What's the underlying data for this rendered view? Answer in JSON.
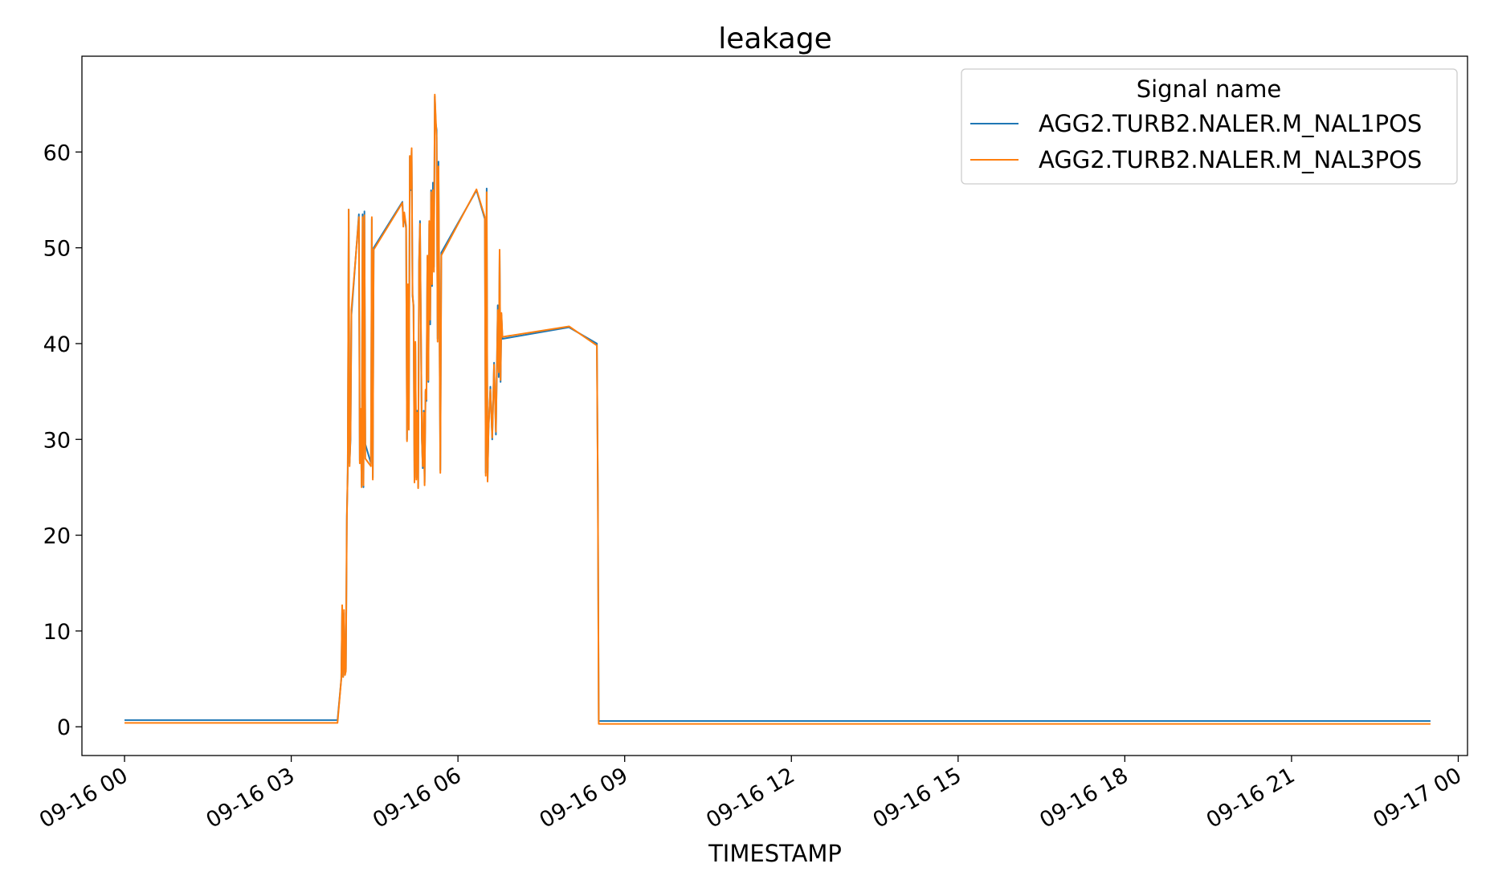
{
  "chart_data": {
    "type": "line",
    "title": "leakage",
    "xlabel": "TIMESTAMP",
    "ylabel": "",
    "xlim": [
      "2023-09-15T23:14",
      "2023-09-17T00:10"
    ],
    "ylim": [
      -3,
      70
    ],
    "x_ticks": [
      "09-16 00",
      "09-16 03",
      "09-16 06",
      "09-16 09",
      "09-16 12",
      "09-16 15",
      "09-16 18",
      "09-16 21",
      "09-17 00"
    ],
    "y_ticks": [
      0,
      10,
      20,
      30,
      40,
      50,
      60
    ],
    "grid": false,
    "legend": {
      "title": "Signal name",
      "location": "top-right"
    },
    "series": [
      {
        "name": "AGG2.TURB2.NALER.M_NAL1POS",
        "color": "#1f77b4",
        "points": [
          [
            "2023-09-16T00:00",
            0.7
          ],
          [
            "2023-09-16T03:50",
            0.7
          ],
          [
            "2023-09-16T03:54",
            5.0
          ],
          [
            "2023-09-16T03:55",
            12.5
          ],
          [
            "2023-09-16T03:56",
            5.2
          ],
          [
            "2023-09-16T03:57",
            11.9
          ],
          [
            "2023-09-16T03:58",
            5.6
          ],
          [
            "2023-09-16T03:59",
            6.0
          ],
          [
            "2023-09-16T04:00",
            22.0
          ],
          [
            "2023-09-16T04:01",
            26.5
          ],
          [
            "2023-09-16T04:02",
            54.0
          ],
          [
            "2023-09-16T04:03",
            27.5
          ],
          [
            "2023-09-16T04:04",
            30.0
          ],
          [
            "2023-09-16T04:05",
            43.0
          ],
          [
            "2023-09-16T04:13",
            53.5
          ],
          [
            "2023-09-16T04:14",
            27.8
          ],
          [
            "2023-09-16T04:15",
            33.0
          ],
          [
            "2023-09-16T04:16",
            25.2
          ],
          [
            "2023-09-16T04:17",
            53.5
          ],
          [
            "2023-09-16T04:18",
            25.0
          ],
          [
            "2023-09-16T04:19",
            53.8
          ],
          [
            "2023-09-16T04:20",
            29.5
          ],
          [
            "2023-09-16T04:26",
            27.5
          ],
          [
            "2023-09-16T04:27",
            53.0
          ],
          [
            "2023-09-16T04:28",
            26.0
          ],
          [
            "2023-09-16T04:29",
            50.0
          ],
          [
            "2023-09-16T05:00",
            54.8
          ],
          [
            "2023-09-16T05:01",
            52.5
          ],
          [
            "2023-09-16T05:02",
            53.5
          ],
          [
            "2023-09-16T05:04",
            52.0
          ],
          [
            "2023-09-16T05:05",
            30.0
          ],
          [
            "2023-09-16T05:06",
            46.0
          ],
          [
            "2023-09-16T05:07",
            31.5
          ],
          [
            "2023-09-16T05:08",
            59.5
          ],
          [
            "2023-09-16T05:09",
            56.0
          ],
          [
            "2023-09-16T05:10",
            60.3
          ],
          [
            "2023-09-16T05:11",
            45.0
          ],
          [
            "2023-09-16T05:12",
            44.0
          ],
          [
            "2023-09-16T05:13",
            25.8
          ],
          [
            "2023-09-16T05:14",
            40.0
          ],
          [
            "2023-09-16T05:15",
            26.0
          ],
          [
            "2023-09-16T05:16",
            33.0
          ],
          [
            "2023-09-16T05:17",
            25.0
          ],
          [
            "2023-09-16T05:18",
            48.5
          ],
          [
            "2023-09-16T05:19",
            52.8
          ],
          [
            "2023-09-16T05:21",
            30.0
          ],
          [
            "2023-09-16T05:22",
            27.0
          ],
          [
            "2023-09-16T05:23",
            33.0
          ],
          [
            "2023-09-16T05:24",
            25.5
          ],
          [
            "2023-09-16T05:25",
            35.0
          ],
          [
            "2023-09-16T05:26",
            34.0
          ],
          [
            "2023-09-16T05:27",
            49.0
          ],
          [
            "2023-09-16T05:28",
            36.0
          ],
          [
            "2023-09-16T05:29",
            52.5
          ],
          [
            "2023-09-16T05:30",
            42.0
          ],
          [
            "2023-09-16T05:31",
            56.0
          ],
          [
            "2023-09-16T05:32",
            46.0
          ],
          [
            "2023-09-16T05:33",
            56.8
          ],
          [
            "2023-09-16T05:34",
            48.0
          ],
          [
            "2023-09-16T05:35",
            65.8
          ],
          [
            "2023-09-16T05:36",
            63.0
          ],
          [
            "2023-09-16T05:37",
            62.3
          ],
          [
            "2023-09-16T05:38",
            40.5
          ],
          [
            "2023-09-16T05:39",
            59.0
          ],
          [
            "2023-09-16T05:40",
            42.0
          ],
          [
            "2023-09-16T05:41",
            26.8
          ],
          [
            "2023-09-16T05:42",
            49.5
          ],
          [
            "2023-09-16T06:20",
            56.0
          ],
          [
            "2023-09-16T06:29",
            53.0
          ],
          [
            "2023-09-16T06:30",
            26.5
          ],
          [
            "2023-09-16T06:31",
            56.2
          ],
          [
            "2023-09-16T06:32",
            25.8
          ],
          [
            "2023-09-16T06:33",
            31.0
          ],
          [
            "2023-09-16T06:35",
            35.5
          ],
          [
            "2023-09-16T06:37",
            30.0
          ],
          [
            "2023-09-16T06:39",
            38.0
          ],
          [
            "2023-09-16T06:41",
            30.5
          ],
          [
            "2023-09-16T06:43",
            44.0
          ],
          [
            "2023-09-16T06:44",
            36.5
          ],
          [
            "2023-09-16T06:45",
            49.5
          ],
          [
            "2023-09-16T06:46",
            36.0
          ],
          [
            "2023-09-16T06:47",
            43.0
          ],
          [
            "2023-09-16T06:48",
            40.5
          ],
          [
            "2023-09-16T08:00",
            41.7
          ],
          [
            "2023-09-16T08:30",
            40.0
          ],
          [
            "2023-09-16T08:31",
            25.0
          ],
          [
            "2023-09-16T08:32",
            0.6
          ],
          [
            "2023-09-16T23:30",
            0.6
          ]
        ]
      },
      {
        "name": "AGG2.TURB2.NALER.M_NAL3POS",
        "color": "#ff7f0e",
        "points": [
          [
            "2023-09-16T00:00",
            0.4
          ],
          [
            "2023-09-16T03:50",
            0.4
          ],
          [
            "2023-09-16T03:54",
            5.0
          ],
          [
            "2023-09-16T03:55",
            12.7
          ],
          [
            "2023-09-16T03:56",
            5.2
          ],
          [
            "2023-09-16T03:57",
            12.2
          ],
          [
            "2023-09-16T03:58",
            5.4
          ],
          [
            "2023-09-16T03:59",
            5.8
          ],
          [
            "2023-09-16T04:00",
            21.5
          ],
          [
            "2023-09-16T04:01",
            26.8
          ],
          [
            "2023-09-16T04:02",
            54.0
          ],
          [
            "2023-09-16T04:03",
            27.2
          ],
          [
            "2023-09-16T04:04",
            30.5
          ],
          [
            "2023-09-16T04:05",
            43.5
          ],
          [
            "2023-09-16T04:13",
            53.2
          ],
          [
            "2023-09-16T04:14",
            27.5
          ],
          [
            "2023-09-16T04:15",
            33.2
          ],
          [
            "2023-09-16T04:16",
            25.0
          ],
          [
            "2023-09-16T04:17",
            53.2
          ],
          [
            "2023-09-16T04:18",
            25.2
          ],
          [
            "2023-09-16T04:19",
            53.4
          ],
          [
            "2023-09-16T04:20",
            28.0
          ],
          [
            "2023-09-16T04:26",
            27.2
          ],
          [
            "2023-09-16T04:27",
            53.2
          ],
          [
            "2023-09-16T04:28",
            25.8
          ],
          [
            "2023-09-16T04:29",
            49.8
          ],
          [
            "2023-09-16T05:00",
            54.7
          ],
          [
            "2023-09-16T05:01",
            52.2
          ],
          [
            "2023-09-16T05:02",
            53.7
          ],
          [
            "2023-09-16T05:04",
            52.3
          ],
          [
            "2023-09-16T05:05",
            29.8
          ],
          [
            "2023-09-16T05:06",
            46.2
          ],
          [
            "2023-09-16T05:07",
            31.0
          ],
          [
            "2023-09-16T05:08",
            59.6
          ],
          [
            "2023-09-16T05:09",
            56.2
          ],
          [
            "2023-09-16T05:10",
            60.4
          ],
          [
            "2023-09-16T05:11",
            45.2
          ],
          [
            "2023-09-16T05:12",
            43.8
          ],
          [
            "2023-09-16T05:13",
            25.5
          ],
          [
            "2023-09-16T05:14",
            40.2
          ],
          [
            "2023-09-16T05:15",
            25.8
          ],
          [
            "2023-09-16T05:16",
            32.8
          ],
          [
            "2023-09-16T05:17",
            24.9
          ],
          [
            "2023-09-16T05:18",
            48.2
          ],
          [
            "2023-09-16T05:19",
            52.5
          ],
          [
            "2023-09-16T05:21",
            30.2
          ],
          [
            "2023-09-16T05:22",
            27.2
          ],
          [
            "2023-09-16T05:23",
            32.8
          ],
          [
            "2023-09-16T05:24",
            25.2
          ],
          [
            "2023-09-16T05:25",
            35.2
          ],
          [
            "2023-09-16T05:26",
            34.2
          ],
          [
            "2023-09-16T05:27",
            49.2
          ],
          [
            "2023-09-16T05:28",
            36.2
          ],
          [
            "2023-09-16T05:29",
            52.8
          ],
          [
            "2023-09-16T05:30",
            42.5
          ],
          [
            "2023-09-16T05:31",
            55.8
          ],
          [
            "2023-09-16T05:32",
            46.2
          ],
          [
            "2023-09-16T05:33",
            56.0
          ],
          [
            "2023-09-16T05:34",
            47.5
          ],
          [
            "2023-09-16T05:35",
            66.0
          ],
          [
            "2023-09-16T05:36",
            63.5
          ],
          [
            "2023-09-16T05:37",
            61.5
          ],
          [
            "2023-09-16T05:38",
            40.2
          ],
          [
            "2023-09-16T05:39",
            58.5
          ],
          [
            "2023-09-16T05:40",
            41.5
          ],
          [
            "2023-09-16T05:41",
            26.5
          ],
          [
            "2023-09-16T05:42",
            49.2
          ],
          [
            "2023-09-16T06:20",
            56.1
          ],
          [
            "2023-09-16T06:29",
            53.2
          ],
          [
            "2023-09-16T06:30",
            26.2
          ],
          [
            "2023-09-16T06:31",
            55.8
          ],
          [
            "2023-09-16T06:32",
            25.6
          ],
          [
            "2023-09-16T06:33",
            31.2
          ],
          [
            "2023-09-16T06:35",
            35.2
          ],
          [
            "2023-09-16T06:37",
            30.2
          ],
          [
            "2023-09-16T06:39",
            37.8
          ],
          [
            "2023-09-16T06:41",
            30.8
          ],
          [
            "2023-09-16T06:43",
            43.5
          ],
          [
            "2023-09-16T06:44",
            37.0
          ],
          [
            "2023-09-16T06:45",
            49.8
          ],
          [
            "2023-09-16T06:46",
            36.2
          ],
          [
            "2023-09-16T06:47",
            43.2
          ],
          [
            "2023-09-16T06:48",
            40.7
          ],
          [
            "2023-09-16T08:00",
            41.8
          ],
          [
            "2023-09-16T08:30",
            39.8
          ],
          [
            "2023-09-16T08:31",
            24.8
          ],
          [
            "2023-09-16T08:32",
            0.3
          ],
          [
            "2023-09-16T23:30",
            0.3
          ]
        ]
      }
    ]
  }
}
